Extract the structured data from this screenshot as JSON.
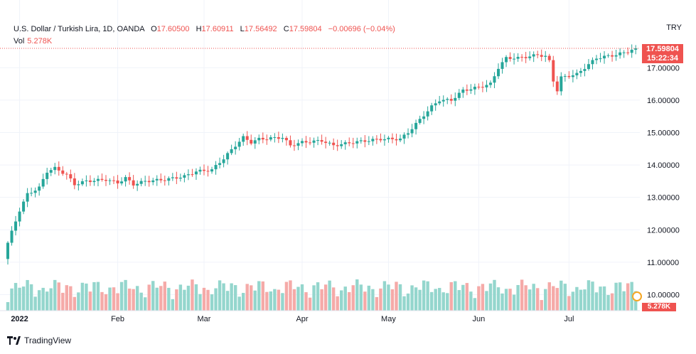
{
  "legend": {
    "symbol": "U.S. Dollar / Turkish Lira, 1D, OANDA",
    "open_label": "O",
    "open_value": "17.60500",
    "high_label": "H",
    "high_value": "17.60911",
    "low_label": "L",
    "low_value": "17.56492",
    "close_label": "C",
    "close_value": "17.59804",
    "change": "−0.00696 (−0.04%)",
    "vol_label": "Vol",
    "vol_value": "5.278K"
  },
  "currency": "TRY",
  "last_price": "17.59804",
  "countdown": "15:22:34",
  "vol_tag": "5.278K",
  "branding": "TradingView",
  "colors": {
    "up": "#26a69a",
    "down": "#ef5350",
    "up_vol": "#94d6cd",
    "down_vol": "#f5aaa8",
    "grid": "#f0f3fa",
    "text": "#131722"
  },
  "chart_data": {
    "type": "candlestick",
    "x_ticks": [
      "2022",
      "Feb",
      "Mar",
      "Apr",
      "May",
      "Jun",
      "Jul"
    ],
    "y_ticks": [
      "10.00000",
      "11.00000",
      "12.00000",
      "13.00000",
      "14.00000",
      "15.00000",
      "16.00000",
      "17.00000"
    ],
    "ylim": [
      9.7,
      18.3
    ],
    "close_keypoints": [
      [
        0,
        11.6
      ],
      [
        3,
        12.6
      ],
      [
        5,
        13.1
      ],
      [
        8,
        13.3
      ],
      [
        10,
        13.8
      ],
      [
        12,
        13.9
      ],
      [
        15,
        13.7
      ],
      [
        17,
        13.4
      ],
      [
        20,
        13.5
      ],
      [
        25,
        13.55
      ],
      [
        28,
        13.45
      ],
      [
        30,
        13.6
      ],
      [
        32,
        13.4
      ],
      [
        35,
        13.5
      ],
      [
        40,
        13.55
      ],
      [
        45,
        13.65
      ],
      [
        48,
        13.8
      ],
      [
        52,
        13.85
      ],
      [
        55,
        14.2
      ],
      [
        58,
        14.6
      ],
      [
        60,
        14.85
      ],
      [
        62,
        14.7
      ],
      [
        64,
        14.8
      ],
      [
        70,
        14.85
      ],
      [
        72,
        14.6
      ],
      [
        75,
        14.7
      ],
      [
        80,
        14.75
      ],
      [
        83,
        14.6
      ],
      [
        88,
        14.7
      ],
      [
        95,
        14.8
      ],
      [
        100,
        14.8
      ],
      [
        102,
        15.0
      ],
      [
        105,
        15.4
      ],
      [
        108,
        15.8
      ],
      [
        110,
        16.0
      ],
      [
        113,
        16.0
      ],
      [
        116,
        16.3
      ],
      [
        120,
        16.4
      ],
      [
        123,
        16.5
      ],
      [
        125,
        17.0
      ],
      [
        127,
        17.3
      ],
      [
        130,
        17.3
      ],
      [
        133,
        17.35
      ],
      [
        135,
        17.4
      ],
      [
        137,
        17.35
      ],
      [
        138,
        17.2
      ],
      [
        139,
        16.6
      ],
      [
        140,
        16.3
      ],
      [
        141,
        16.7
      ],
      [
        145,
        16.8
      ],
      [
        147,
        17.0
      ],
      [
        150,
        17.3
      ],
      [
        155,
        17.4
      ],
      [
        158,
        17.5
      ],
      [
        160,
        17.6
      ]
    ],
    "annotated_last_bar": {
      "open": 17.605,
      "high": 17.60911,
      "low": 17.56492,
      "close": 17.59804,
      "volume": "5.278K"
    }
  }
}
